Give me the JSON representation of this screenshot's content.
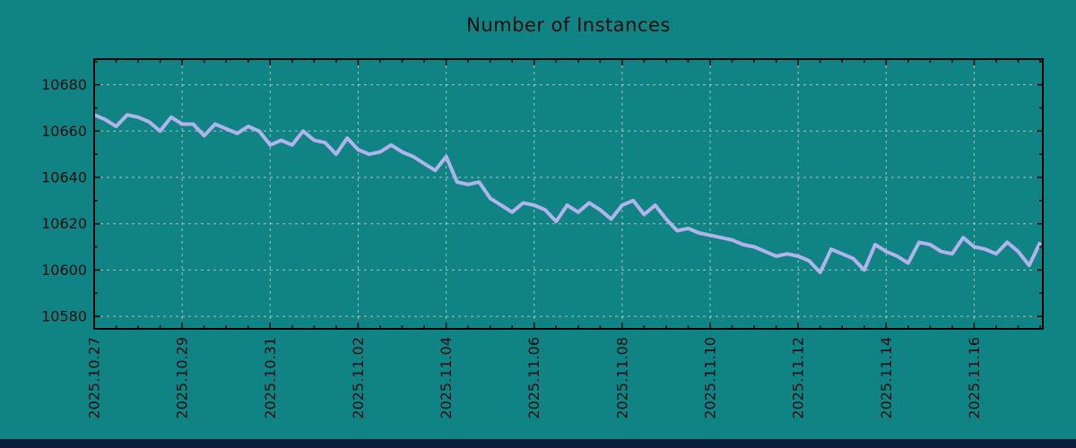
{
  "page": {
    "background_color": "#108484",
    "bottom_bar_color": "#0b1e3c"
  },
  "chart_data": {
    "type": "line",
    "title": "Number of Instances",
    "series_name": "instances",
    "line_color": "#b3b3ec",
    "grid_color": "#c9c9c9",
    "axis_color": "#000000",
    "text_color": "#0d0d0d",
    "legend": "none",
    "grid": "dashed",
    "x_start": "2025.10.27 00:00",
    "interval_hours": 6,
    "x_tick_rotation_deg": 90,
    "x_tick_labels": [
      "2025.10.27",
      "2025.10.29",
      "2025.10.31",
      "2025.11.02",
      "2025.11.04",
      "2025.11.06",
      "2025.11.08",
      "2025.11.10",
      "2025.11.12",
      "2025.11.14",
      "2025.11.16"
    ],
    "x_major_tick_days": [
      0,
      2,
      4,
      6,
      8,
      10,
      12,
      14,
      16,
      18,
      20
    ],
    "x_minor_step_days": 0.5,
    "xlim_days": [
      0,
      21.56
    ],
    "y_ticks": [
      10580,
      10600,
      10620,
      10640,
      10660,
      10680
    ],
    "y_minor_ticks": [
      10590,
      10610,
      10630,
      10650,
      10670,
      10690
    ],
    "ylim": [
      10574.5,
      10691
    ],
    "values": [
      10667,
      10665,
      10662,
      10667,
      10666,
      10664,
      10660,
      10666,
      10663,
      10663,
      10658,
      10663,
      10661,
      10659,
      10662,
      10660,
      10654,
      10656,
      10654,
      10660,
      10656,
      10655,
      10650,
      10657,
      10652,
      10650,
      10651,
      10654,
      10651,
      10649,
      10646,
      10643,
      10649,
      10638,
      10637,
      10638,
      10631,
      10628,
      10625,
      10629,
      10628,
      10626,
      10621,
      10628,
      10625,
      10629,
      10626,
      10622,
      10628,
      10630,
      10624,
      10628,
      10622,
      10617,
      10618,
      10616,
      10615,
      10614,
      10613,
      10611,
      10610,
      10608,
      10606,
      10607,
      10606,
      10604,
      10599,
      10609,
      10607,
      10605,
      10600,
      10611,
      10608,
      10606,
      10603,
      10612,
      10611,
      10608,
      10607,
      10614,
      10610,
      10609,
      10607,
      10612,
      10608,
      10602,
      10612
    ]
  }
}
